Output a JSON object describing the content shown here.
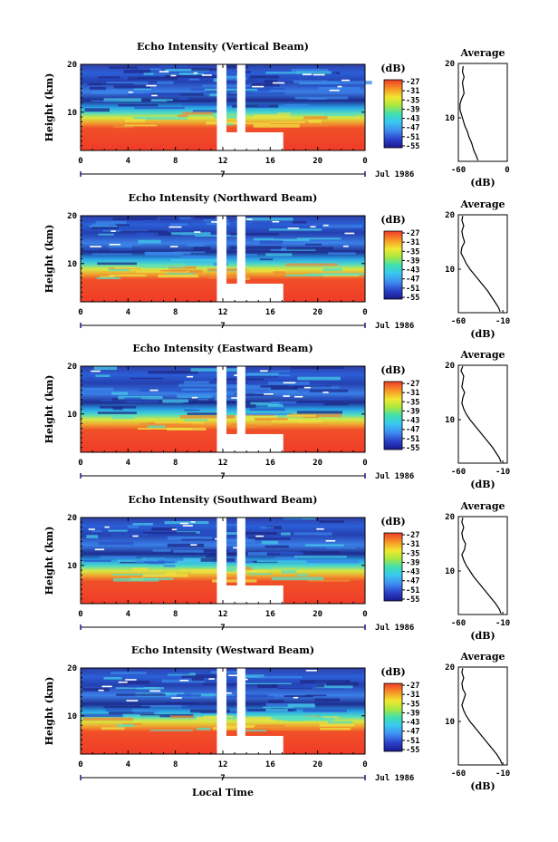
{
  "figure": {
    "xlabel": "Local Time",
    "date_label": "Jul 1986",
    "date_day_tick": "7",
    "colorbar_unit": "(dB)",
    "profile_title": "Average",
    "profile_xlabel": "(dB)"
  },
  "chart_data": [
    {
      "type": "heatmap",
      "title": "Echo Intensity (Vertical Beam)",
      "xlabel": "",
      "ylabel": "Height (km)",
      "xlim": [
        0,
        24
      ],
      "ylim": [
        2,
        20
      ],
      "xticks": [
        "0",
        "4",
        "8",
        "12",
        "16",
        "20",
        "0"
      ],
      "yticks": [
        "10",
        "20"
      ],
      "colorbar": {
        "label": "(dB)",
        "ticks": [
          "-27",
          "-31",
          "-35",
          "-39",
          "-43",
          "-47",
          "-51",
          "-55"
        ]
      },
      "gaps": [
        {
          "x": [
            11.5,
            12.3
          ],
          "y": [
            2,
            20
          ]
        },
        {
          "x": [
            13.2,
            13.9
          ],
          "y": [
            2,
            20
          ]
        },
        {
          "x": [
            11.5,
            17.1
          ],
          "y": [
            2,
            5.8
          ]
        }
      ],
      "profile": {
        "title": "Average",
        "xlabel": "(dB)",
        "xlim": [
          -60,
          0
        ],
        "xticks": [
          "-60",
          "0"
        ],
        "ylim": [
          2,
          20
        ],
        "yticks": [
          "10",
          "20"
        ],
        "points": [
          [
            -36,
            2.2
          ],
          [
            -38,
            3
          ],
          [
            -41,
            4
          ],
          [
            -43,
            5
          ],
          [
            -44,
            5.5
          ],
          [
            -47,
            6.5
          ],
          [
            -49,
            7.5
          ],
          [
            -52,
            8.5
          ],
          [
            -54,
            9.5
          ],
          [
            -56,
            10.5
          ],
          [
            -58,
            11.5
          ],
          [
            -58,
            12.5
          ],
          [
            -56,
            13.5
          ],
          [
            -53,
            14.5
          ],
          [
            -54,
            15.5
          ],
          [
            -55,
            16.5
          ],
          [
            -53,
            17.5
          ],
          [
            -55,
            18.5
          ],
          [
            -54,
            19.5
          ]
        ]
      }
    },
    {
      "type": "heatmap",
      "title": "Echo Intensity (Northward Beam)",
      "xlabel": "",
      "ylabel": "Height (km)",
      "xlim": [
        0,
        24
      ],
      "ylim": [
        2,
        20
      ],
      "xticks": [
        "0",
        "4",
        "8",
        "12",
        "16",
        "20",
        "0"
      ],
      "yticks": [
        "10",
        "20"
      ],
      "colorbar": {
        "label": "(dB)",
        "ticks": [
          "-27",
          "-31",
          "-35",
          "-39",
          "-43",
          "-47",
          "-51",
          "-55"
        ]
      },
      "gaps": [
        {
          "x": [
            11.5,
            12.3
          ],
          "y": [
            2,
            20
          ]
        },
        {
          "x": [
            13.2,
            13.9
          ],
          "y": [
            2,
            20
          ]
        },
        {
          "x": [
            11.5,
            17.1
          ],
          "y": [
            2,
            5.8
          ]
        }
      ],
      "profile": {
        "title": "Average",
        "xlabel": "(dB)",
        "xlim": [
          -60,
          -5
        ],
        "xticks": [
          "-60",
          "-10"
        ],
        "ylim": [
          2,
          20
        ],
        "yticks": [
          "10",
          "20"
        ],
        "points": [
          [
            -13,
            2.2
          ],
          [
            -15,
            3
          ],
          [
            -19,
            4
          ],
          [
            -23,
            5
          ],
          [
            -27,
            6
          ],
          [
            -32,
            7
          ],
          [
            -37,
            8
          ],
          [
            -42,
            9
          ],
          [
            -47,
            10
          ],
          [
            -51,
            11
          ],
          [
            -54,
            12
          ],
          [
            -57,
            13
          ],
          [
            -56,
            14
          ],
          [
            -53,
            15
          ],
          [
            -55,
            16
          ],
          [
            -56,
            17
          ],
          [
            -54,
            18
          ],
          [
            -56,
            19
          ],
          [
            -55,
            19.8
          ]
        ]
      }
    },
    {
      "type": "heatmap",
      "title": "Echo Intensity (Eastward Beam)",
      "xlabel": "",
      "ylabel": "Height (km)",
      "xlim": [
        0,
        24
      ],
      "ylim": [
        2,
        20
      ],
      "xticks": [
        "0",
        "4",
        "8",
        "12",
        "16",
        "20",
        "0"
      ],
      "yticks": [
        "10",
        "20"
      ],
      "colorbar": {
        "label": "(dB)",
        "ticks": [
          "-27",
          "-31",
          "-35",
          "-39",
          "-43",
          "-47",
          "-51",
          "-55"
        ]
      },
      "gaps": [
        {
          "x": [
            11.5,
            12.3
          ],
          "y": [
            2,
            20
          ]
        },
        {
          "x": [
            13.2,
            13.9
          ],
          "y": [
            2,
            20
          ]
        },
        {
          "x": [
            11.5,
            17.1
          ],
          "y": [
            2,
            5.8
          ]
        }
      ],
      "profile": {
        "title": "Average",
        "xlabel": "(dB)",
        "xlim": [
          -60,
          -5
        ],
        "xticks": [
          "-60",
          "-10"
        ],
        "ylim": [
          2,
          20
        ],
        "yticks": [
          "10",
          "20"
        ],
        "points": [
          [
            -12,
            2.2
          ],
          [
            -14,
            3
          ],
          [
            -18,
            4
          ],
          [
            -22,
            5
          ],
          [
            -27,
            6
          ],
          [
            -32,
            7
          ],
          [
            -37,
            8
          ],
          [
            -42,
            9
          ],
          [
            -47,
            10
          ],
          [
            -51,
            11
          ],
          [
            -54,
            12
          ],
          [
            -56,
            13
          ],
          [
            -55,
            14
          ],
          [
            -53,
            15
          ],
          [
            -56,
            16
          ],
          [
            -55,
            17
          ],
          [
            -54,
            18
          ],
          [
            -57,
            19
          ],
          [
            -55,
            19.8
          ]
        ]
      }
    },
    {
      "type": "heatmap",
      "title": "Echo Intensity (Southward Beam)",
      "xlabel": "",
      "ylabel": "Height (km)",
      "xlim": [
        0,
        24
      ],
      "ylim": [
        2,
        20
      ],
      "xticks": [
        "0",
        "4",
        "8",
        "12",
        "16",
        "20",
        "0"
      ],
      "yticks": [
        "10",
        "20"
      ],
      "colorbar": {
        "label": "(dB)",
        "ticks": [
          "-27",
          "-31",
          "-35",
          "-39",
          "-43",
          "-47",
          "-51",
          "-55"
        ]
      },
      "gaps": [
        {
          "x": [
            11.5,
            12.3
          ],
          "y": [
            2,
            20
          ]
        },
        {
          "x": [
            13.2,
            13.9
          ],
          "y": [
            2,
            20
          ]
        },
        {
          "x": [
            11.5,
            17.1
          ],
          "y": [
            2,
            5.8
          ]
        }
      ],
      "profile": {
        "title": "Average",
        "xlabel": "(dB)",
        "xlim": [
          -60,
          -5
        ],
        "xticks": [
          "-60",
          "-10"
        ],
        "ylim": [
          2,
          20
        ],
        "yticks": [
          "10",
          "20"
        ],
        "points": [
          [
            -12,
            2.2
          ],
          [
            -14,
            3
          ],
          [
            -18,
            4
          ],
          [
            -23,
            5
          ],
          [
            -28,
            6
          ],
          [
            -33,
            7
          ],
          [
            -38,
            8
          ],
          [
            -43,
            9
          ],
          [
            -47,
            10
          ],
          [
            -51,
            11
          ],
          [
            -54,
            12
          ],
          [
            -56,
            13
          ],
          [
            -53,
            14
          ],
          [
            -52,
            15
          ],
          [
            -55,
            16
          ],
          [
            -56,
            17
          ],
          [
            -54,
            18
          ],
          [
            -56,
            19
          ],
          [
            -55,
            19.8
          ]
        ]
      }
    },
    {
      "type": "heatmap",
      "title": "Echo Intensity (Westward Beam)",
      "xlabel": "",
      "ylabel": "Height (km)",
      "xlim": [
        0,
        24
      ],
      "ylim": [
        2,
        20
      ],
      "xticks": [
        "0",
        "4",
        "8",
        "12",
        "16",
        "20",
        "0"
      ],
      "yticks": [
        "10",
        "20"
      ],
      "colorbar": {
        "label": "(dB)",
        "ticks": [
          "-27",
          "-31",
          "-35",
          "-39",
          "-43",
          "-47",
          "-51",
          "-55"
        ]
      },
      "gaps": [
        {
          "x": [
            11.5,
            12.3
          ],
          "y": [
            2,
            20
          ]
        },
        {
          "x": [
            13.2,
            13.9
          ],
          "y": [
            2,
            20
          ]
        },
        {
          "x": [
            11.5,
            17.1
          ],
          "y": [
            2,
            5.8
          ]
        }
      ],
      "profile": {
        "title": "Average",
        "xlabel": "(dB)",
        "xlim": [
          -60,
          -5
        ],
        "xticks": [
          "-60",
          "-10"
        ],
        "ylim": [
          2,
          20
        ],
        "yticks": [
          "10",
          "20"
        ],
        "points": [
          [
            -11,
            2.2
          ],
          [
            -13,
            3
          ],
          [
            -17,
            4
          ],
          [
            -22,
            5
          ],
          [
            -27,
            6
          ],
          [
            -32,
            7
          ],
          [
            -37,
            8
          ],
          [
            -42,
            9
          ],
          [
            -47,
            10
          ],
          [
            -51,
            11
          ],
          [
            -54,
            12
          ],
          [
            -56,
            13
          ],
          [
            -54,
            14
          ],
          [
            -52,
            15
          ],
          [
            -55,
            16
          ],
          [
            -56,
            17
          ],
          [
            -54,
            18
          ],
          [
            -56,
            19
          ],
          [
            -55,
            19.8
          ]
        ]
      }
    }
  ]
}
